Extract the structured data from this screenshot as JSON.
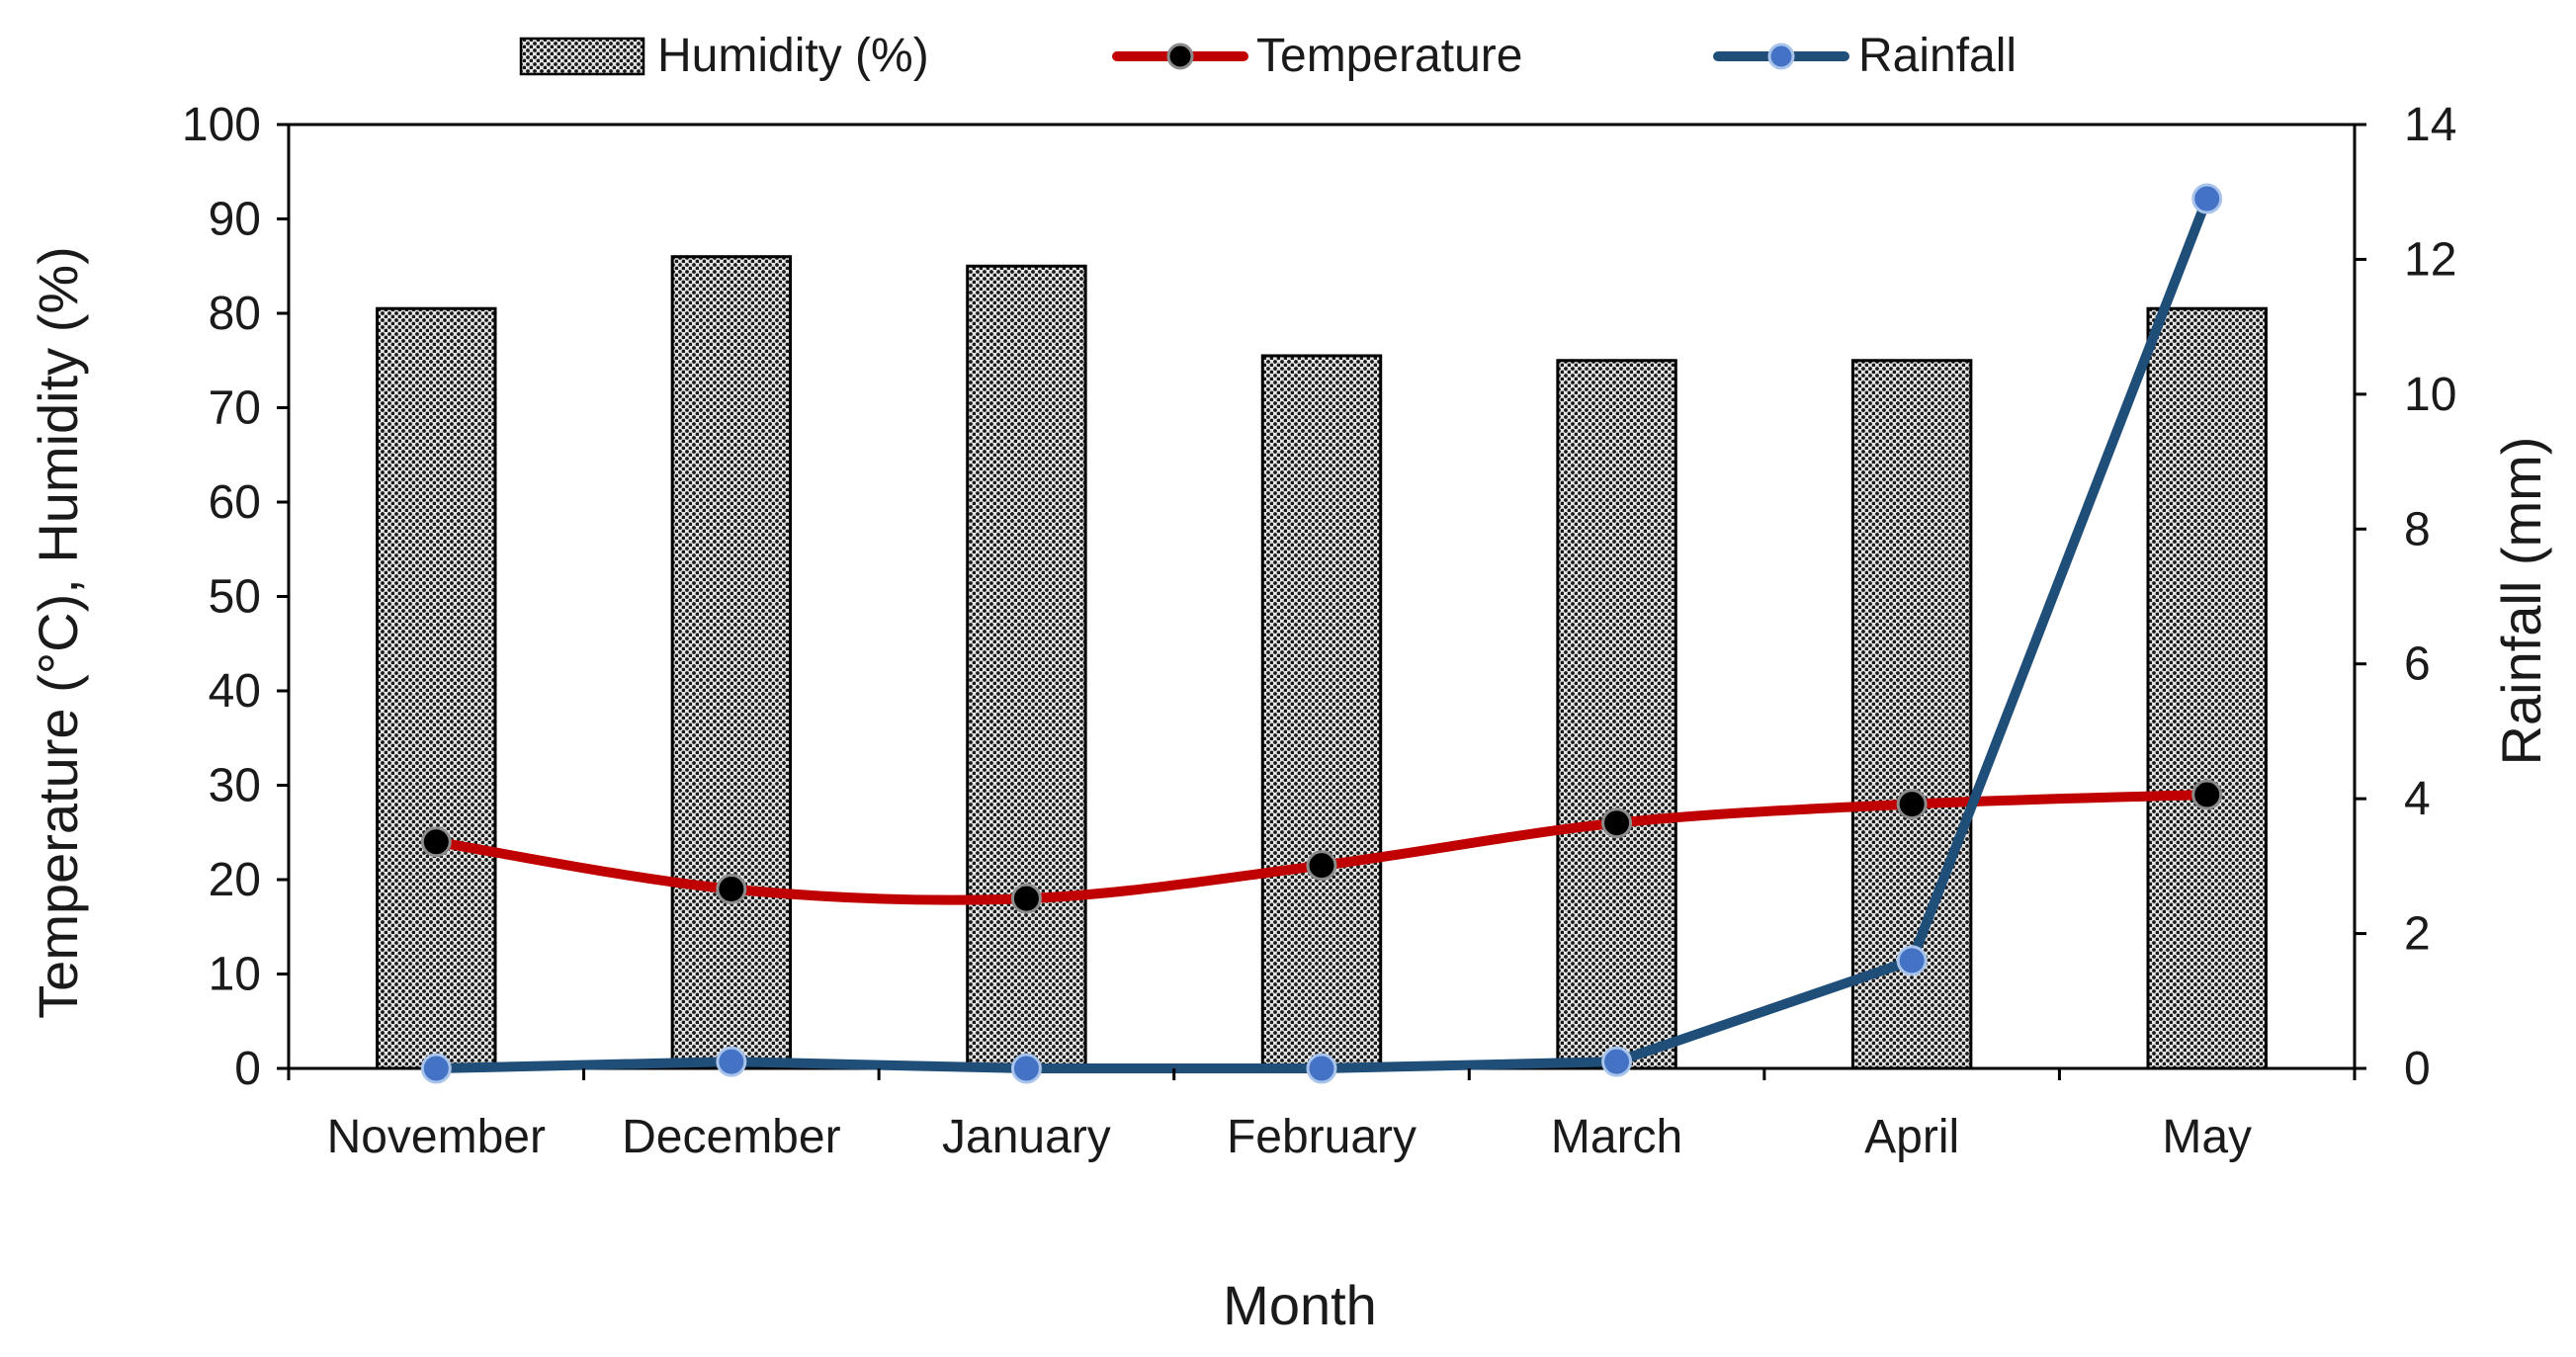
{
  "chart_data": {
    "type": "bar+line",
    "title": "",
    "categories": [
      "November",
      "December",
      "January",
      "February",
      "March",
      "April",
      "May"
    ],
    "xlabel": "Month",
    "ylabel_left": "Temperature (°C), Humidity (%)",
    "ylabel_right": "Rainfall (mm)",
    "ylim_left": [
      0,
      100
    ],
    "ylim_right": [
      0,
      14
    ],
    "yticks_left": [
      "0",
      "10",
      "20",
      "30",
      "40",
      "50",
      "60",
      "70",
      "80",
      "90",
      "100"
    ],
    "yticks_right": [
      "0",
      "2",
      "4",
      "6",
      "8",
      "10",
      "12",
      "14"
    ],
    "legend_position": "top-center",
    "series": [
      {
        "name": "Humidity (%)",
        "kind": "bar",
        "axis": "left",
        "color": "#000000",
        "values": [
          80.5,
          86,
          85,
          75.5,
          75,
          75,
          80.5
        ]
      },
      {
        "name": "Temperature",
        "kind": "line",
        "axis": "left",
        "color": "#c00000",
        "marker_color": "#000000",
        "values": [
          24,
          19,
          18,
          21.5,
          26,
          28,
          29
        ]
      },
      {
        "name": "Rainfall",
        "kind": "line",
        "axis": "right",
        "color": "#1f4e79",
        "marker_color": "#4472c4",
        "values": [
          0,
          0.1,
          0,
          0,
          0.1,
          1.6,
          12.9
        ]
      }
    ]
  }
}
